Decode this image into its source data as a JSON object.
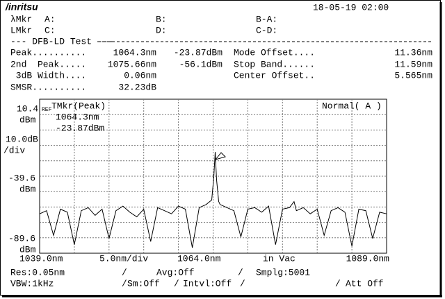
{
  "header": {
    "brand": "/inritsu",
    "datetime": "18-05-19 02:00"
  },
  "markers": {
    "lambda_label": "λMkr",
    "a": "A:",
    "b": "B:",
    "ba": "B-A:",
    "l_label": "LMkr",
    "c": "C:",
    "d": "D:",
    "cd": "C-D:"
  },
  "test_title": "--- DFB-LD Test ---",
  "results": [
    [
      "Peak..........",
      "1064.3nm",
      "-23.87dBm",
      "Mode Offset....",
      "11.36nm"
    ],
    [
      "2nd  Peak.....",
      "1075.66nm",
      "-56.1dBm",
      "Stop Band......",
      "11.59nm"
    ],
    [
      " 3dB Width....",
      "0.06nm",
      "Center Offset..",
      "5.565nm"
    ],
    [
      "SMSR..........",
      "32.23dB"
    ]
  ],
  "chart_data": {
    "type": "line",
    "color": "#000000",
    "x": [
      1039,
      1040,
      1041,
      1042,
      1043,
      1044,
      1045,
      1046,
      1047,
      1048,
      1049,
      1050,
      1051,
      1052,
      1053,
      1054,
      1055,
      1056,
      1057,
      1058,
      1059,
      1060,
      1061,
      1062,
      1063,
      1063.8,
      1064.1,
      1064.3,
      1064.5,
      1064.8,
      1065,
      1066,
      1067,
      1068,
      1069,
      1070,
      1071,
      1072,
      1073,
      1074,
      1075,
      1075.66,
      1076,
      1077,
      1078,
      1079,
      1080,
      1081,
      1082,
      1083,
      1084,
      1085,
      1086,
      1087,
      1088,
      1089
    ],
    "values": [
      -64,
      -62,
      -78,
      -61,
      -63,
      -84,
      -62,
      -60,
      -65,
      -61,
      -80,
      -62,
      -59,
      -63,
      -66,
      -61,
      -82,
      -60,
      -62,
      -64,
      -59,
      -61,
      -86,
      -60,
      -58,
      -55,
      -40,
      -23.87,
      -42,
      -56,
      -58,
      -60,
      -62,
      -79,
      -61,
      -60,
      -63,
      -59,
      -84,
      -61,
      -60,
      -56.1,
      -62,
      -60,
      -64,
      -61,
      -78,
      -62,
      -60,
      -63,
      -85,
      -61,
      -62,
      -80,
      -63,
      -64
    ],
    "xlim": [
      1039,
      1089
    ],
    "ylim": [
      -89.6,
      10.4
    ],
    "y_labels": [
      "10.4",
      "dBm",
      "10.0dB",
      "/div",
      "-39.6",
      "dBm",
      "-89.6",
      "dBm"
    ],
    "x_labels": [
      "1039.0nm",
      "5.0nm/div",
      "1064.0nm",
      "in Vac",
      "1089.0nm"
    ],
    "ref": "REF",
    "marker_title": "TMkr(Peak)",
    "marker_wl": "1064.3nm",
    "marker_level": "-23.87dBm",
    "mode": "Normal( A )"
  },
  "footer": [
    "Res:0.05nm",
    "Avg:Off",
    "Smplg:5001",
    "VBW:1kHz",
    "Sm:Off",
    "Intvl:Off",
    "Att Off"
  ]
}
